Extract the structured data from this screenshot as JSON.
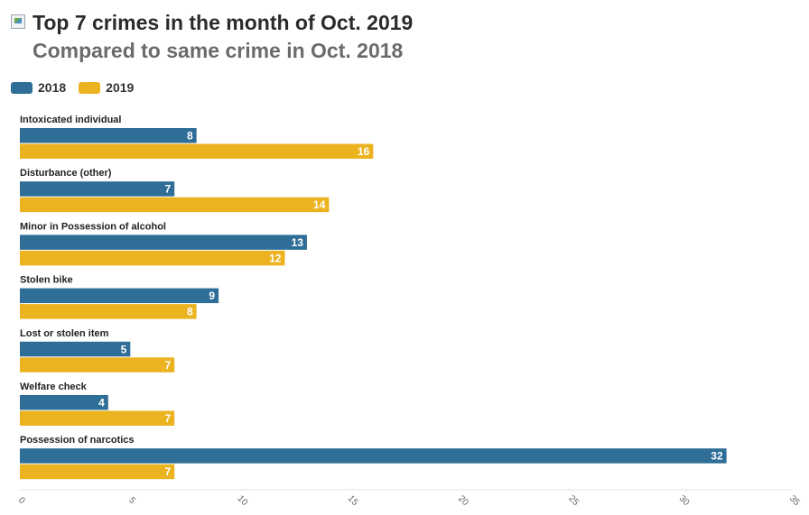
{
  "colors": {
    "series_2018": "#2f6e97",
    "series_2019": "#ecb321",
    "axis": "#e0e0e0"
  },
  "header": {
    "logo_icon": "broken-image-icon"
  },
  "chart_data": {
    "type": "bar",
    "orientation": "horizontal",
    "title": "Top 7 crimes in the month of Oct. 2019",
    "subtitle": "Compared to same crime in Oct. 2018",
    "xlabel": "",
    "ylabel": "",
    "xlim": [
      0,
      35
    ],
    "ticks": [
      0,
      5,
      10,
      15,
      20,
      25,
      30,
      35
    ],
    "legend_position": "top-left",
    "grid": false,
    "categories": [
      "Intoxicated individual",
      "Disturbance (other)",
      "Minor in Possession of alcohol",
      "Stolen bike",
      "Lost or stolen item",
      "Welfare check",
      "Possession of narcotics"
    ],
    "series": [
      {
        "name": "2018",
        "values": [
          8,
          7,
          13,
          9,
          5,
          4,
          32
        ]
      },
      {
        "name": "2019",
        "values": [
          16,
          14,
          12,
          8,
          7,
          7,
          7
        ]
      }
    ]
  }
}
